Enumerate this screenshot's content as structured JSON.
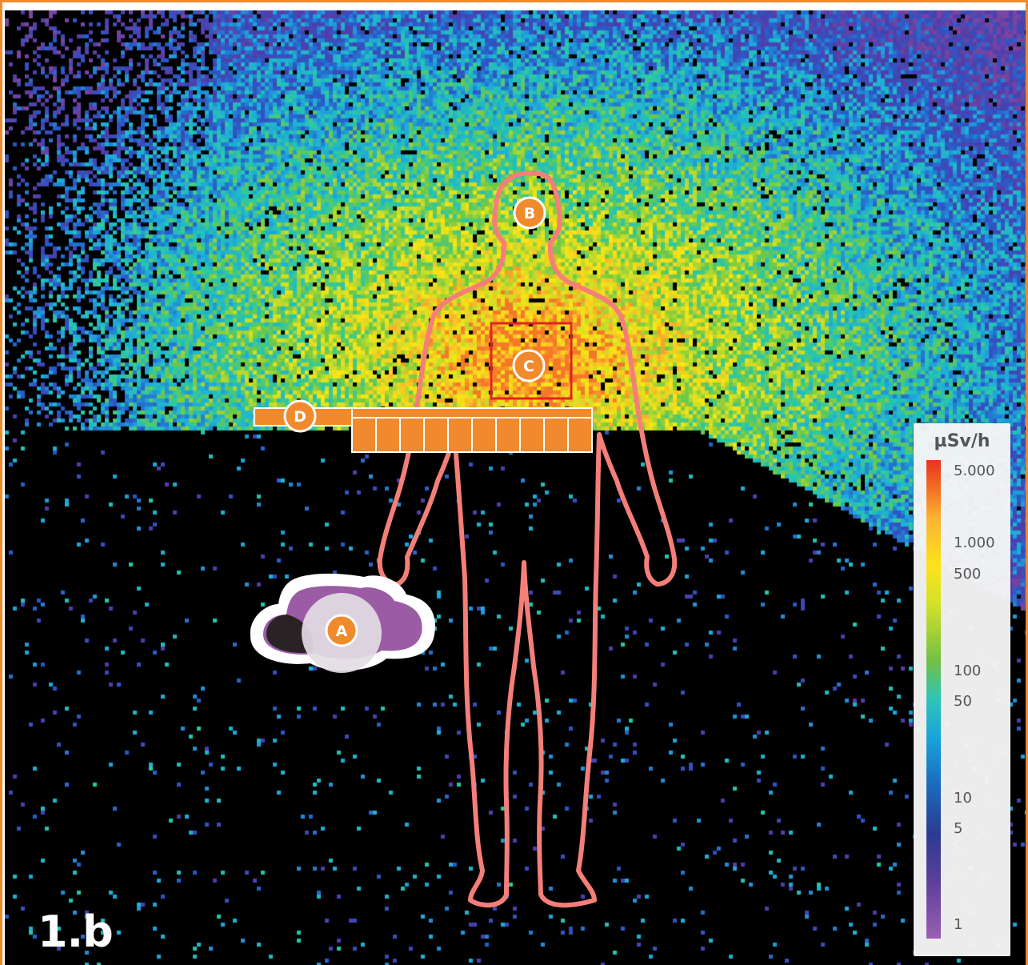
{
  "figure": {
    "label": "1.b"
  },
  "markers": {
    "a": "A",
    "b": "B",
    "c": "C",
    "d": "D"
  },
  "legend": {
    "unit": "µSv/h",
    "ticks": [
      {
        "label": "5.000",
        "value": 5000
      },
      {
        "label": "1.000",
        "value": 1000
      },
      {
        "label": "500",
        "value": 500
      },
      {
        "label": "100",
        "value": 100
      },
      {
        "label": "50",
        "value": 50
      },
      {
        "label": "10",
        "value": 10
      },
      {
        "label": "5",
        "value": 5
      },
      {
        "label": "1",
        "value": 1
      }
    ]
  },
  "colors": {
    "frame": "#f08a2c",
    "marker": "#f08a2c",
    "body_outline": "#f47f78",
    "box_c": "#e42320",
    "probe": "#9b5ba5"
  },
  "icons": {
    "source_device": "x-ray-source-icon",
    "body": "human-silhouette-icon"
  }
}
